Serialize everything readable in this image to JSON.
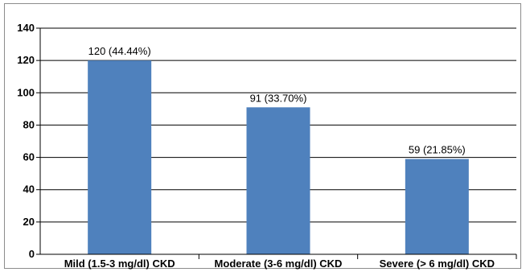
{
  "chart_data": {
    "type": "bar",
    "categories": [
      "Mild (1.5-3 mg/dl) CKD",
      "Moderate (3-6 mg/dl) CKD",
      "Severe (> 6 mg/dl) CKD"
    ],
    "values": [
      120,
      91,
      59
    ],
    "data_labels": [
      "120 (44.44%)",
      "91 (33.70%)",
      "59 (21.85%)"
    ],
    "ylim": [
      0,
      140
    ],
    "yticks": [
      0,
      20,
      40,
      60,
      80,
      100,
      120,
      140
    ],
    "ytick_labels": [
      "0",
      "20",
      "40",
      "60",
      "80",
      "100",
      "120",
      "140"
    ],
    "title": "",
    "xlabel": "",
    "ylabel": "",
    "grid": true,
    "legend": false,
    "bar_color": "#4f81bd",
    "grid_color": "#000000"
  }
}
